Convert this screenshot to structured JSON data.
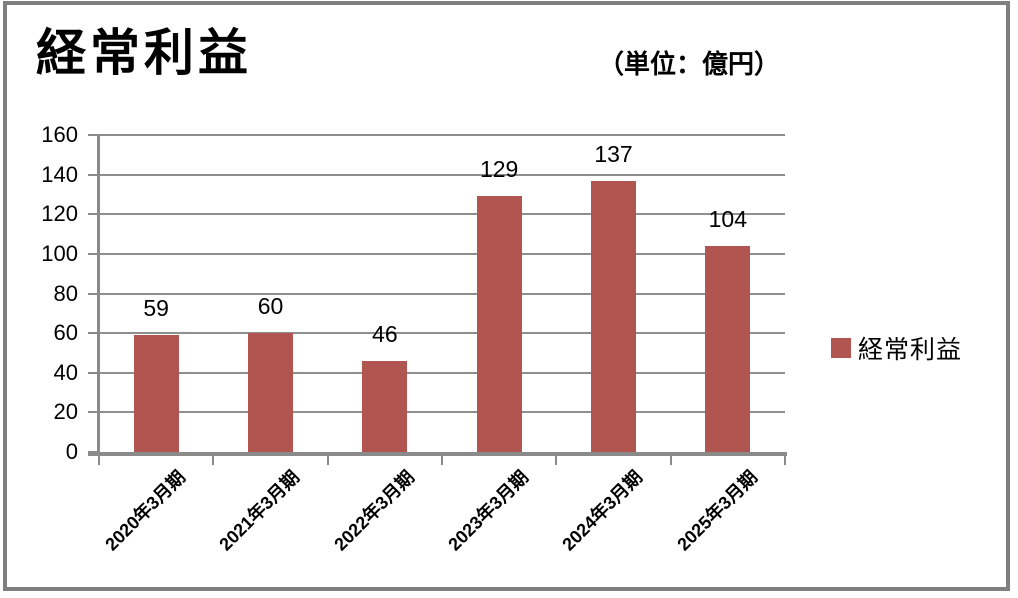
{
  "header": {
    "title": "経常利益",
    "unit_label": "（単位：億円）"
  },
  "legend": {
    "position": "right",
    "items": [
      {
        "label": "経常利益",
        "color": "#B15551"
      }
    ]
  },
  "chart_data": {
    "type": "bar",
    "title": "経常利益",
    "unit": "億円",
    "categories": [
      "2020年3月期",
      "2021年3月期",
      "2022年3月期",
      "2023年3月期",
      "2024年3月期",
      "2025年3月期"
    ],
    "series": [
      {
        "name": "経常利益",
        "color": "#B15551",
        "values": [
          59,
          60,
          46,
          129,
          137,
          104
        ]
      }
    ],
    "data_labels": [
      "59",
      "60",
      "46",
      "129",
      "137",
      "104"
    ],
    "xlabel": "",
    "ylabel": "",
    "ylim": [
      0,
      160
    ],
    "yticks": [
      0,
      20,
      40,
      60,
      80,
      100,
      120,
      140,
      160
    ],
    "grid": true,
    "legend_position": "right"
  },
  "colors": {
    "bar": "#B15551",
    "gridline": "#8F8F8F",
    "axis": "#8A8A8A",
    "frame_border": "#7F7F7F",
    "background": "#FFFFFF",
    "text": "#000000"
  }
}
